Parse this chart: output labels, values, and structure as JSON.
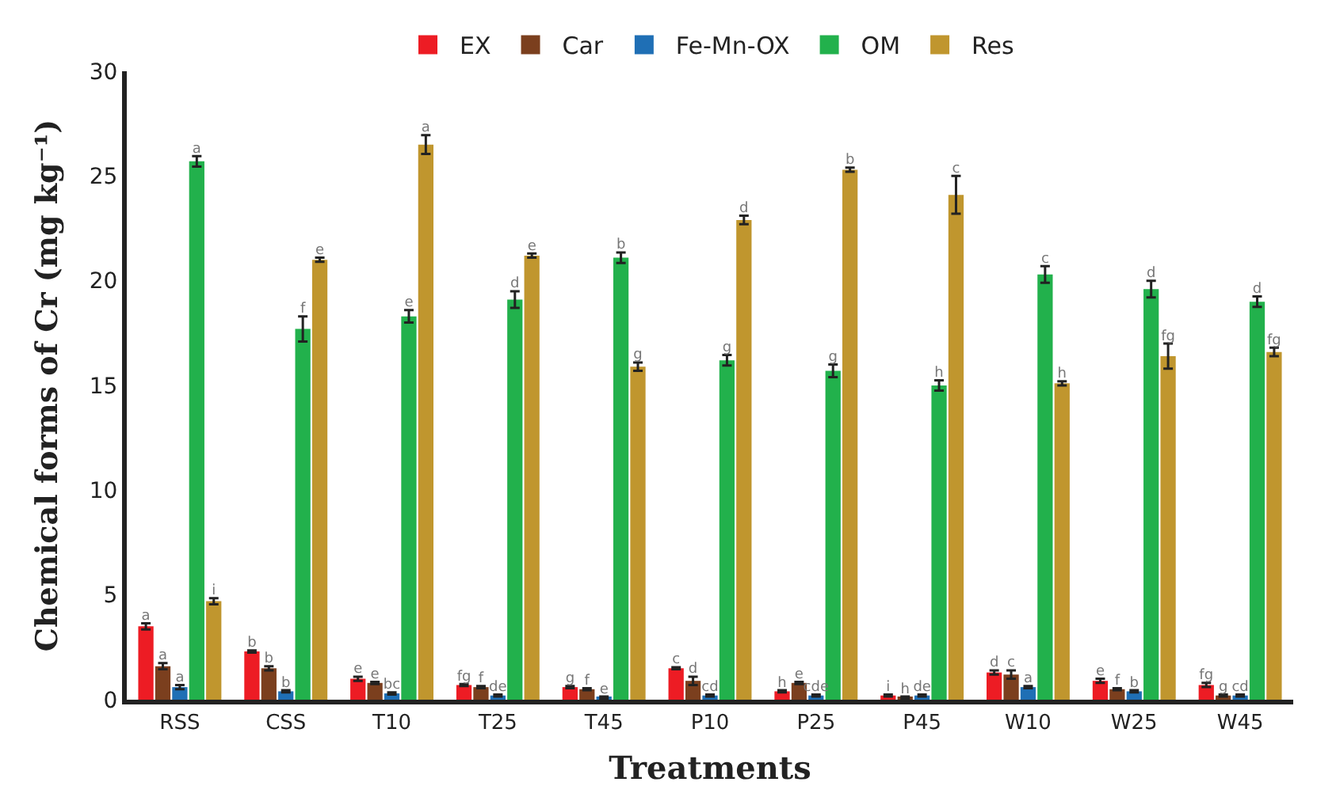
{
  "chart_data": {
    "type": "bar",
    "xlabel": "Treatments",
    "ylabel": "Chemical forms of Cr (mg kg⁻¹)",
    "categories": [
      "RSS",
      "CSS",
      "T10",
      "T25",
      "T45",
      "P10",
      "P25",
      "P45",
      "W10",
      "W25",
      "W45"
    ],
    "series": [
      {
        "name": "EX",
        "color": "#ed1c24",
        "values": [
          3.5,
          2.3,
          1.0,
          0.7,
          0.6,
          1.5,
          0.4,
          0.2,
          1.3,
          0.9,
          0.7
        ],
        "errors": [
          0.15,
          0.05,
          0.1,
          0.05,
          0.05,
          0.05,
          0.05,
          0.05,
          0.1,
          0.1,
          0.1
        ],
        "value_labels": [
          "a",
          "b",
          "e",
          "fg",
          "g",
          "c",
          "h",
          "i",
          "d",
          "e",
          "fg"
        ]
      },
      {
        "name": "Car",
        "color": "#7b3f1e",
        "values": [
          1.6,
          1.5,
          0.8,
          0.6,
          0.5,
          0.9,
          0.8,
          0.1,
          1.2,
          0.5,
          0.2
        ],
        "errors": [
          0.15,
          0.1,
          0.05,
          0.05,
          0.05,
          0.2,
          0.05,
          0.05,
          0.2,
          0.05,
          0.05
        ],
        "value_labels": [
          "a",
          "b",
          "e",
          "f",
          "f",
          "d",
          "e",
          "h",
          "c",
          "f",
          "g"
        ]
      },
      {
        "name": "Fe-Mn-OX",
        "color": "#1f6fb5",
        "values": [
          0.6,
          0.4,
          0.3,
          0.2,
          0.1,
          0.2,
          0.2,
          0.2,
          0.6,
          0.4,
          0.2
        ],
        "errors": [
          0.1,
          0.05,
          0.05,
          0.05,
          0.05,
          0.05,
          0.05,
          0.05,
          0.05,
          0.05,
          0.05
        ],
        "value_labels": [
          "a",
          "b",
          "bc",
          "de",
          "e",
          "cd",
          "cde",
          "de",
          "a",
          "b",
          "cd"
        ]
      },
      {
        "name": "OM",
        "color": "#22b14c",
        "values": [
          25.7,
          17.7,
          18.3,
          19.1,
          21.1,
          16.2,
          15.7,
          15.0,
          20.3,
          19.6,
          19.0
        ],
        "errors": [
          0.25,
          0.6,
          0.3,
          0.4,
          0.25,
          0.25,
          0.3,
          0.25,
          0.4,
          0.4,
          0.25
        ],
        "value_labels": [
          "a",
          "f",
          "e",
          "d",
          "b",
          "g",
          "g",
          "h",
          "c",
          "d",
          "d"
        ]
      },
      {
        "name": "Res",
        "color": "#c0962e",
        "values": [
          4.7,
          21.0,
          26.5,
          21.2,
          15.9,
          22.9,
          25.3,
          24.1,
          15.1,
          16.4,
          16.6
        ],
        "errors": [
          0.15,
          0.1,
          0.45,
          0.1,
          0.2,
          0.2,
          0.1,
          0.9,
          0.1,
          0.6,
          0.2
        ],
        "value_labels": [
          "i",
          "e",
          "a",
          "e",
          "g",
          "d",
          "b",
          "c",
          "h",
          "fg",
          "fg"
        ]
      }
    ],
    "ylim": [
      0,
      30
    ],
    "yticks": [
      0,
      5,
      10,
      15,
      20,
      25,
      30
    ],
    "legend": "top"
  }
}
